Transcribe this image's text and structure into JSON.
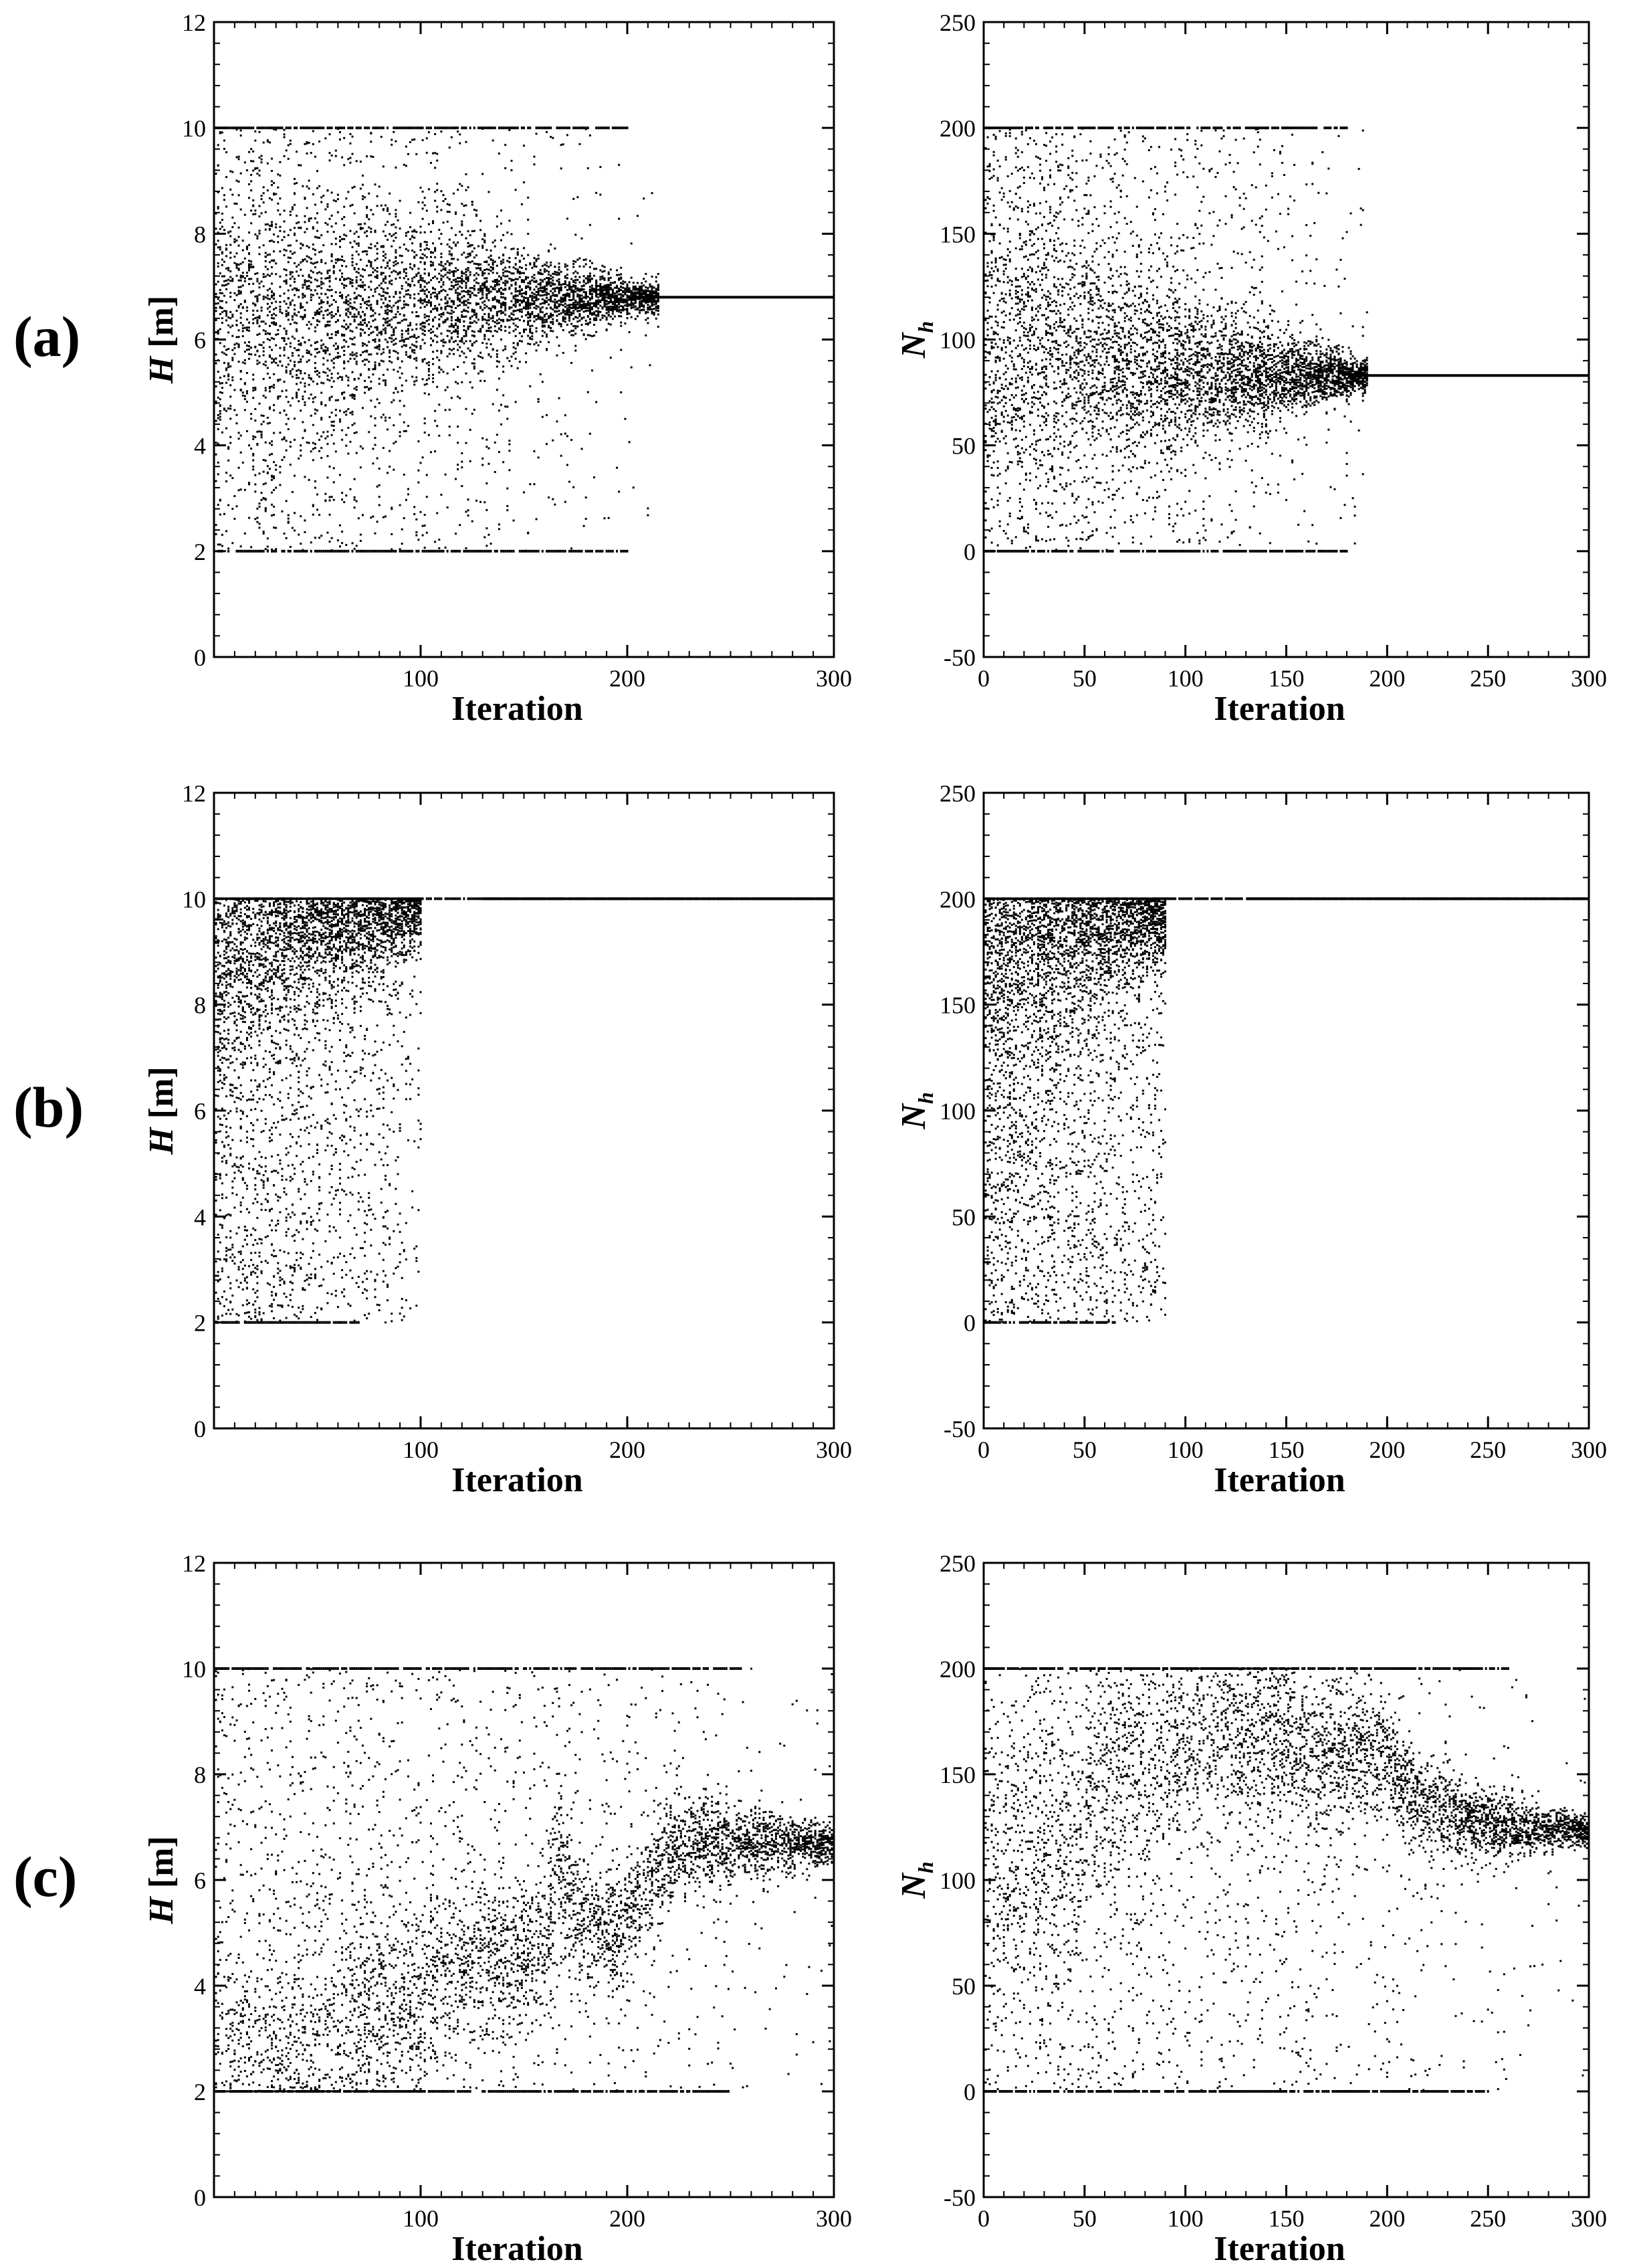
{
  "panel_labels": [
    "(a)",
    "(b)",
    "(c)"
  ],
  "chart_data": [
    {
      "type": "scatter",
      "row": "(a)",
      "col": "left",
      "xlabel": "Iteration",
      "ylabel": "H [m]",
      "ylabel_main": "H",
      "ylabel_unit": " [m]",
      "xlim": [
        0,
        300
      ],
      "ylim": [
        0,
        12
      ],
      "xticks": [
        100,
        200,
        300
      ],
      "xtick_labels": [
        "100",
        "200",
        "300"
      ],
      "yticks": [
        0,
        2,
        4,
        6,
        8,
        10,
        12
      ],
      "ytick_labels": [
        "0",
        "2",
        "4",
        "6",
        "8",
        "10",
        "12"
      ],
      "grid": false,
      "lower_bound": 2,
      "upper_bound": 10,
      "lower_bound_band_until": 200,
      "upper_bound_band_until": 200,
      "trend": {
        "x": [
          0,
          50,
          100,
          150,
          200,
          230,
          300
        ],
        "y": [
          6.4,
          6.5,
          6.7,
          6.75,
          6.8,
          6.8,
          6.8
        ]
      },
      "converged_from_iteration": 200,
      "converged_value": 6.8,
      "spread_until_iteration": 215
    },
    {
      "type": "scatter",
      "row": "(a)",
      "col": "right",
      "xlabel": "Iteration",
      "ylabel": "Nh",
      "ylabel_main": "N",
      "ylabel_sub": "h",
      "xlim": [
        0,
        300
      ],
      "ylim": [
        -50,
        250
      ],
      "xticks": [
        0,
        50,
        100,
        150,
        200,
        250,
        300
      ],
      "xtick_labels": [
        "0",
        "50",
        "100",
        "150",
        "200",
        "250",
        "300"
      ],
      "yticks": [
        -50,
        0,
        50,
        100,
        150,
        200,
        250
      ],
      "ytick_labels": [
        "-50",
        "0",
        "50",
        "100",
        "150",
        "200",
        "250"
      ],
      "grid": false,
      "lower_bound": 0,
      "upper_bound": 200,
      "lower_bound_band_until": 180,
      "upper_bound_band_until": 180,
      "trend": {
        "x": [
          0,
          50,
          100,
          150,
          185,
          300
        ],
        "y": [
          100,
          90,
          85,
          83,
          83,
          83
        ]
      },
      "converged_from_iteration": 185,
      "converged_value": 83,
      "spread_until_iteration": 190
    },
    {
      "type": "scatter",
      "row": "(b)",
      "col": "left",
      "xlabel": "Iteration",
      "ylabel": "H [m]",
      "ylabel_main": "H",
      "ylabel_unit": " [m]",
      "xlim": [
        0,
        300
      ],
      "ylim": [
        0,
        12
      ],
      "xticks": [
        100,
        200,
        300
      ],
      "xtick_labels": [
        "100",
        "200",
        "300"
      ],
      "yticks": [
        0,
        2,
        4,
        6,
        8,
        10,
        12
      ],
      "ytick_labels": [
        "0",
        "2",
        "4",
        "6",
        "8",
        "10",
        "12"
      ],
      "grid": false,
      "lower_bound": 2,
      "upper_bound": 10,
      "lower_bound_band_until": 70,
      "upper_bound_band_until": 300,
      "trend": {
        "x": [
          0,
          30,
          60,
          100,
          300
        ],
        "y": [
          9.3,
          9.7,
          9.85,
          9.95,
          10
        ]
      },
      "converged_from_iteration": 130,
      "converged_value": 10,
      "spread_until_iteration": 100
    },
    {
      "type": "scatter",
      "row": "(b)",
      "col": "right",
      "xlabel": "Iteration",
      "ylabel": "Nh",
      "ylabel_main": "N",
      "ylabel_sub": "h",
      "xlim": [
        0,
        300
      ],
      "ylim": [
        -50,
        250
      ],
      "xticks": [
        0,
        50,
        100,
        150,
        200,
        250,
        300
      ],
      "xtick_labels": [
        "0",
        "50",
        "100",
        "150",
        "200",
        "250",
        "300"
      ],
      "yticks": [
        -50,
        0,
        50,
        100,
        150,
        200,
        250
      ],
      "ytick_labels": [
        "-50",
        "0",
        "50",
        "100",
        "150",
        "200",
        "250"
      ],
      "grid": false,
      "lower_bound": 0,
      "upper_bound": 200,
      "lower_bound_band_until": 65,
      "upper_bound_band_until": 300,
      "trend": {
        "x": [
          0,
          30,
          60,
          100,
          300
        ],
        "y": [
          185,
          192,
          196,
          199,
          200
        ]
      },
      "converged_from_iteration": 130,
      "converged_value": 200,
      "spread_until_iteration": 90
    },
    {
      "type": "scatter",
      "row": "(c)",
      "col": "left",
      "xlabel": "Iteration",
      "ylabel": "H [m]",
      "ylabel_main": "H",
      "ylabel_unit": " [m]",
      "xlim": [
        0,
        300
      ],
      "ylim": [
        0,
        12
      ],
      "xticks": [
        100,
        200,
        300
      ],
      "xtick_labels": [
        "100",
        "200",
        "300"
      ],
      "yticks": [
        0,
        2,
        4,
        6,
        8,
        10,
        12
      ],
      "ytick_labels": [
        "0",
        "2",
        "4",
        "6",
        "8",
        "10",
        "12"
      ],
      "grid": false,
      "lower_bound": 2,
      "upper_bound": 10,
      "lower_bound_band_until": 250,
      "upper_bound_band_until": 255,
      "trend": {
        "x": [
          0,
          30,
          60,
          65,
          100,
          110,
          150,
          160,
          165,
          175,
          190,
          205,
          215,
          230,
          300
        ],
        "y": [
          2.2,
          2.3,
          2.5,
          3.5,
          3.5,
          4.4,
          4.6,
          4.4,
          6.6,
          5.4,
          5.0,
          5.5,
          6.4,
          6.7,
          6.7
        ]
      },
      "converged_from_iteration": 300,
      "converged_value": 6.7,
      "spread_until_iteration": 300
    },
    {
      "type": "scatter",
      "row": "(c)",
      "col": "right",
      "xlabel": "Iteration",
      "ylabel": "Nh",
      "ylabel_main": "N",
      "ylabel_sub": "h",
      "xlim": [
        0,
        300
      ],
      "ylim": [
        -50,
        250
      ],
      "xticks": [
        0,
        50,
        100,
        150,
        200,
        250,
        300
      ],
      "xtick_labels": [
        "0",
        "50",
        "100",
        "150",
        "200",
        "250",
        "300"
      ],
      "yticks": [
        -50,
        0,
        50,
        100,
        150,
        200,
        250
      ],
      "ytick_labels": [
        "-50",
        "0",
        "50",
        "100",
        "150",
        "200",
        "250"
      ],
      "grid": false,
      "lower_bound": 0,
      "upper_bound": 200,
      "lower_bound_band_until": 250,
      "upper_bound_band_until": 260,
      "trend": {
        "x": [
          0,
          20,
          48,
          52,
          80,
          110,
          125,
          160,
          200,
          215,
          240,
          270,
          300
        ],
        "y": [
          100,
          110,
          118,
          150,
          155,
          175,
          170,
          160,
          160,
          135,
          128,
          124,
          124
        ]
      },
      "converged_from_iteration": 290,
      "converged_value": 124,
      "spread_until_iteration": 300
    }
  ]
}
